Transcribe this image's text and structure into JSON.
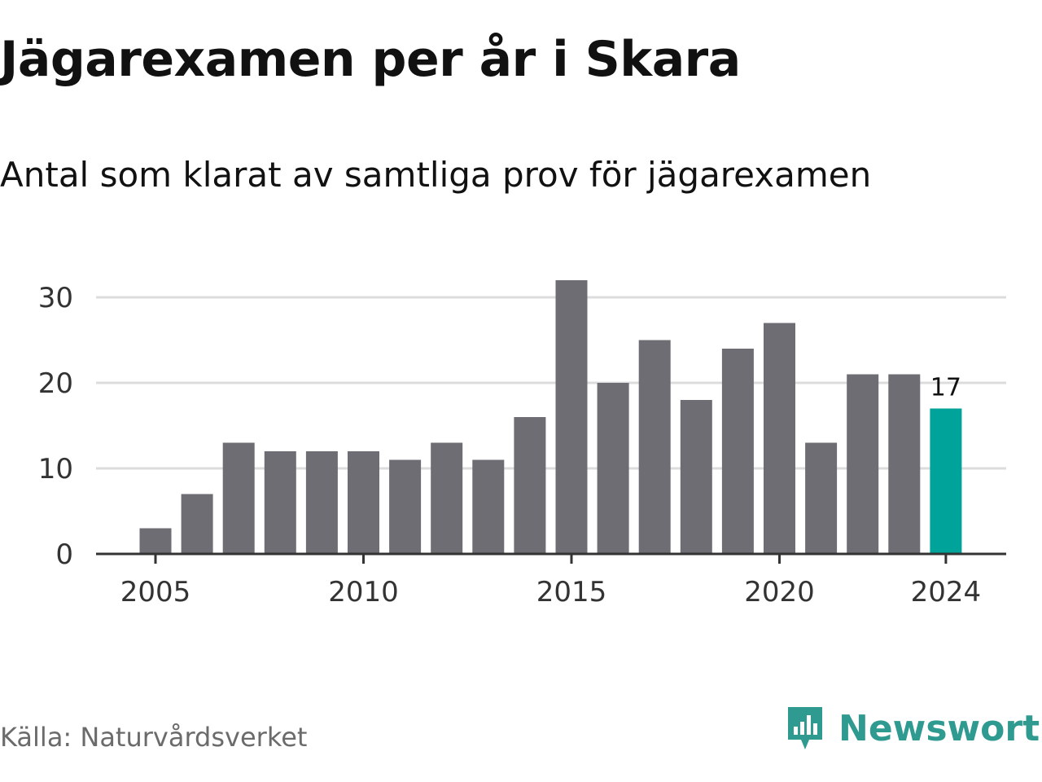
{
  "title": "Jägarexamen per år i Skara",
  "subtitle": "Antal som klarat av samtliga prov för jägarexamen",
  "source": "Källa: Naturvårdsverket",
  "brand": {
    "name": "Newsworthy",
    "icon": "newsworthy-logo-icon",
    "color": "#2e9a90"
  },
  "colors": {
    "bar": "#6e6d73",
    "highlight": "#00a399",
    "grid": "#dcdcdc",
    "axis": "#333333"
  },
  "chart_data": {
    "type": "bar",
    "x": [
      2005,
      2006,
      2007,
      2008,
      2009,
      2010,
      2011,
      2012,
      2013,
      2014,
      2015,
      2016,
      2017,
      2018,
      2019,
      2020,
      2021,
      2022,
      2023,
      2024
    ],
    "values": [
      3,
      7,
      13,
      12,
      12,
      12,
      11,
      13,
      11,
      16,
      32,
      20,
      25,
      18,
      24,
      27,
      13,
      21,
      21,
      17
    ],
    "x_ticks": [
      "2005",
      "2010",
      "2015",
      "2020",
      "2024"
    ],
    "y_ticks": [
      0,
      10,
      20,
      30
    ],
    "ylim": [
      0,
      32
    ],
    "grid": true,
    "highlight": {
      "x": 2024,
      "label": "17"
    }
  }
}
